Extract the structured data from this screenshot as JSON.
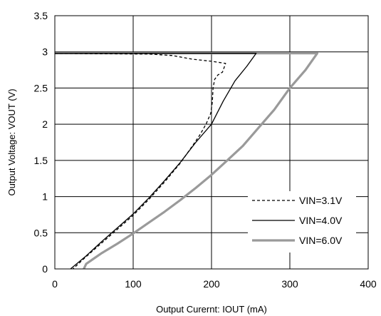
{
  "chart_data": {
    "type": "line",
    "title": "",
    "xlabel": "Output Curernt: IOUT (mA)",
    "ylabel": "Output Voltage: VOUT (V)",
    "xlim": [
      0,
      400
    ],
    "ylim": [
      0,
      3.5
    ],
    "xticks": [
      0,
      100,
      200,
      300,
      400
    ],
    "yticks": [
      0,
      0.5,
      1,
      1.5,
      2,
      2.5,
      3,
      3.5
    ],
    "xtick_labels": [
      "0",
      "100",
      "200",
      "300",
      "400"
    ],
    "ytick_labels": [
      "0",
      "0.5",
      "1",
      "1.5",
      "2",
      "2.5",
      "3",
      "3.5"
    ],
    "grid": true,
    "legend_position": "bottom-right",
    "series": [
      {
        "name": "VIN=3.1V",
        "style": "dashed",
        "color": "#000000",
        "points": [
          [
            0,
            2.98
          ],
          [
            120,
            2.97
          ],
          [
            150,
            2.95
          ],
          [
            175,
            2.9
          ],
          [
            200,
            2.87
          ],
          [
            218,
            2.84
          ],
          [
            214,
            2.72
          ],
          [
            208,
            2.68
          ],
          [
            204,
            2.62
          ],
          [
            202,
            2.5
          ],
          [
            201,
            2.3
          ],
          [
            199,
            2.15
          ],
          [
            193,
            2.0
          ],
          [
            185,
            1.85
          ],
          [
            175,
            1.69
          ],
          [
            160,
            1.46
          ],
          [
            140,
            1.2
          ],
          [
            120,
            0.96
          ],
          [
            100,
            0.74
          ],
          [
            80,
            0.55
          ],
          [
            60,
            0.36
          ],
          [
            40,
            0.17
          ],
          [
            23,
            0.0
          ]
        ]
      },
      {
        "name": "VIN=4.0V",
        "style": "solid",
        "color": "#000000",
        "points": [
          [
            0,
            2.98
          ],
          [
            257,
            2.98
          ],
          [
            245,
            2.8
          ],
          [
            230,
            2.6
          ],
          [
            215,
            2.32
          ],
          [
            200,
            2.0
          ],
          [
            180,
            1.75
          ],
          [
            160,
            1.47
          ],
          [
            140,
            1.22
          ],
          [
            120,
            0.98
          ],
          [
            100,
            0.76
          ],
          [
            80,
            0.57
          ],
          [
            60,
            0.38
          ],
          [
            40,
            0.18
          ],
          [
            20,
            0.0
          ]
        ]
      },
      {
        "name": "VIN=6.0V",
        "style": "thick-gray",
        "color": "#9a9a9a",
        "points": [
          [
            0,
            2.98
          ],
          [
            335,
            2.98
          ],
          [
            320,
            2.75
          ],
          [
            300,
            2.5
          ],
          [
            280,
            2.2
          ],
          [
            260,
            1.95
          ],
          [
            240,
            1.7
          ],
          [
            220,
            1.5
          ],
          [
            200,
            1.3
          ],
          [
            180,
            1.12
          ],
          [
            160,
            0.95
          ],
          [
            140,
            0.79
          ],
          [
            120,
            0.64
          ],
          [
            100,
            0.49
          ],
          [
            80,
            0.35
          ],
          [
            60,
            0.22
          ],
          [
            40,
            0.07
          ],
          [
            37,
            0.0
          ]
        ]
      }
    ]
  }
}
